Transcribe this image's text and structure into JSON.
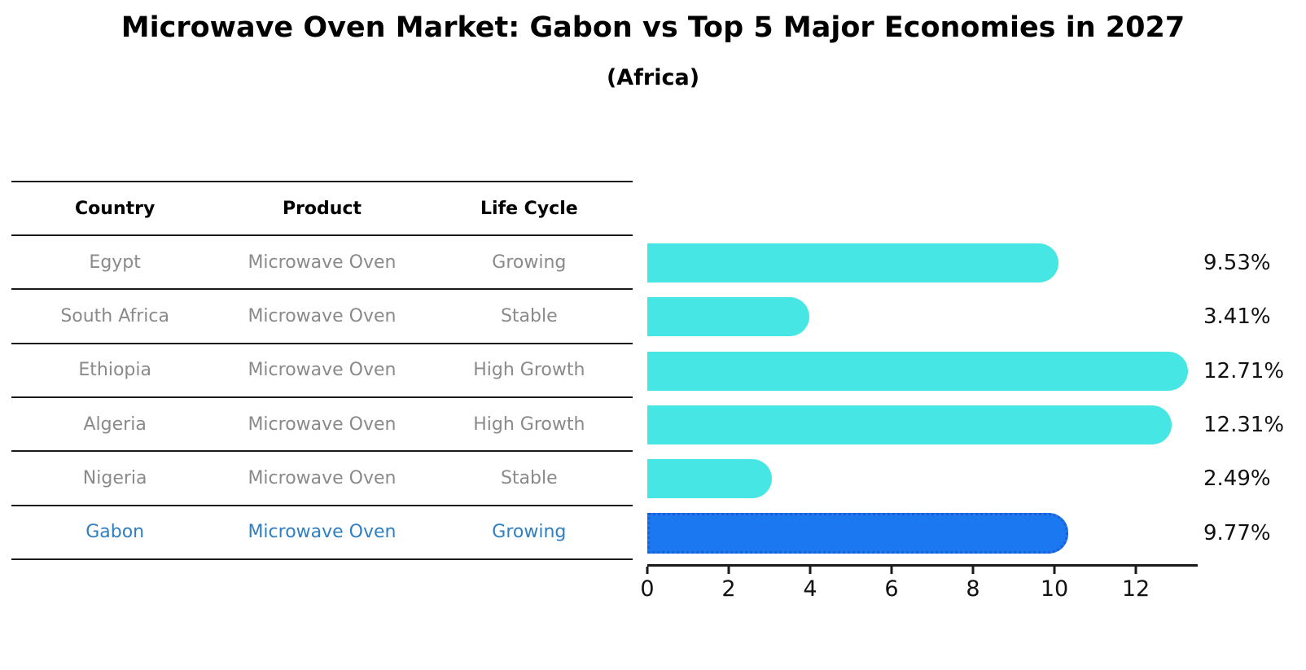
{
  "title": "Microwave Oven Market: Gabon vs Top 5 Major Economies in 2027",
  "subtitle": "(Africa)",
  "table": {
    "headers": [
      "Country",
      "Product",
      "Life Cycle"
    ],
    "rows": [
      {
        "country": "Egypt",
        "product": "Microwave Oven",
        "life_cycle": "Growing",
        "highlight": false
      },
      {
        "country": "South Africa",
        "product": "Microwave Oven",
        "life_cycle": "Stable",
        "highlight": false
      },
      {
        "country": "Ethiopia",
        "product": "Microwave Oven",
        "life_cycle": "High Growth",
        "highlight": false
      },
      {
        "country": "Algeria",
        "product": "Microwave Oven",
        "life_cycle": "High Growth",
        "highlight": false
      },
      {
        "country": "Nigeria",
        "product": "Microwave Oven",
        "life_cycle": "Stable",
        "highlight": false
      },
      {
        "country": "Gabon",
        "product": "Microwave Oven",
        "life_cycle": "Growing",
        "highlight": true
      }
    ]
  },
  "chart_data": {
    "type": "bar",
    "orientation": "horizontal",
    "title": "Microwave Oven Market: Gabon vs Top 5 Major Economies in 2027 (Africa)",
    "categories": [
      "Egypt",
      "South Africa",
      "Ethiopia",
      "Algeria",
      "Nigeria",
      "Gabon"
    ],
    "values": [
      9.53,
      3.41,
      12.71,
      12.31,
      2.49,
      9.77
    ],
    "value_labels": [
      "9.53%",
      "3.41%",
      "12.71%",
      "12.31%",
      "2.49%",
      "9.77%"
    ],
    "xlim": [
      0,
      13.5
    ],
    "x_ticks": [
      0,
      2,
      4,
      6,
      8,
      10,
      12
    ],
    "grid": false,
    "legend": false,
    "highlight_index": 5
  },
  "colors": {
    "bar": "#45e6e3",
    "highlight_bar": "#1b78f0",
    "highlight_border": "#1a5ed8",
    "row_text": "#8a8a8a",
    "highlight_text": "#2f7fc3",
    "line": "#1a1a1a",
    "axis_text": "#111111"
  }
}
